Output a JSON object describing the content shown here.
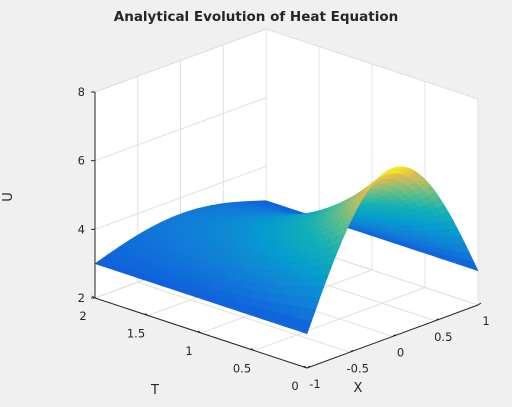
{
  "chart_data": {
    "type": "surface",
    "title": "Analytical Evolution of Heat Equation",
    "xlabel": "X",
    "ylabel": "T",
    "zlabel": "U",
    "xlim": [
      -1,
      1
    ],
    "ylim": [
      0,
      2
    ],
    "zlim": [
      2,
      8
    ],
    "xticks": [
      "-1",
      "-0.5",
      "0",
      "0.5",
      "1"
    ],
    "yticks": [
      "0",
      "0.5",
      "1",
      "1.5",
      "2"
    ],
    "zticks": [
      "2",
      "4",
      "6",
      "8"
    ],
    "grid": true,
    "colormap": "parula",
    "colors": {
      "background": "#f0f0f0",
      "axes_face": "#ffffff",
      "grid": "#e0e0e0",
      "axis_line": "#262626"
    }
  }
}
